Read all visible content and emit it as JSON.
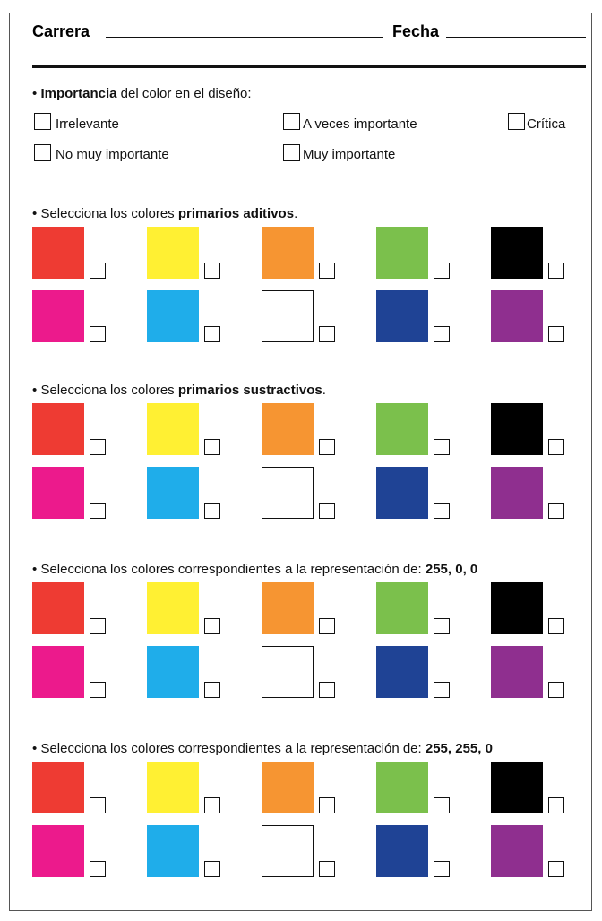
{
  "header": {
    "career_label": "Carrera",
    "date_label": "Fecha"
  },
  "importance": {
    "bullet": "•",
    "bold": "Importancia",
    "text": "del color en el diseño:",
    "options": [
      "Irrelevante",
      "A veces importante",
      "Crítica",
      "No muy importante",
      "Muy importante"
    ]
  },
  "questions": [
    {
      "bullet": "•",
      "text": "Selecciona los colores",
      "bold": "primarios aditivos",
      "end": "."
    },
    {
      "bullet": "•",
      "text": "Selecciona los colores",
      "bold": "primarios sustractivos",
      "end": "."
    },
    {
      "bullet": "•",
      "text": "Selecciona los colores correspondientes a la representación de:",
      "bold": "255, 0, 0"
    },
    {
      "bullet": "•",
      "text": "Selecciona los colores correspondientes a la representación de:",
      "bold": "255, 255, 0"
    }
  ]
}
